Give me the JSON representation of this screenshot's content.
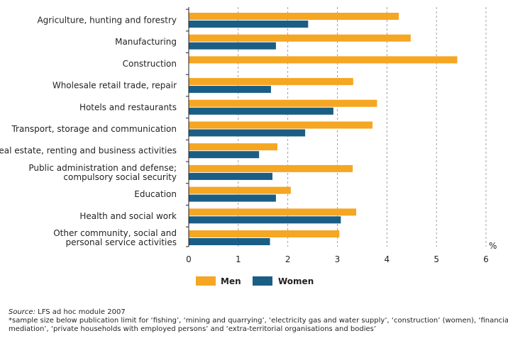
{
  "chart_data": {
    "type": "bar",
    "orientation": "horizontal",
    "categories": [
      [
        "Agriculture, hunting and forestry"
      ],
      [
        "Manufacturing"
      ],
      [
        "Construction"
      ],
      [
        "Wholesale retail trade, repair"
      ],
      [
        "Hotels and restaurants"
      ],
      [
        "Transport, storage and communication"
      ],
      [
        "Real estate, renting and business activities"
      ],
      [
        "Public administration and defense;",
        "compulsory social security"
      ],
      [
        "Education"
      ],
      [
        "Health and social work"
      ],
      [
        "Other community, social and",
        "personal service activities"
      ]
    ],
    "series": [
      {
        "name": "Men",
        "color": "#f5a623",
        "values": [
          4.24,
          4.48,
          5.42,
          3.32,
          3.8,
          3.71,
          1.79,
          3.31,
          2.06,
          3.38,
          3.04
        ]
      },
      {
        "name": "Women",
        "color": "#1a5e86",
        "values": [
          2.41,
          1.76,
          null,
          1.66,
          2.92,
          2.35,
          1.42,
          1.69,
          1.76,
          3.07,
          1.64
        ]
      }
    ],
    "xlim": [
      0,
      6
    ],
    "xticks": [
      "0",
      "1",
      "2",
      "3",
      "4",
      "5",
      "6"
    ],
    "unit_label": "%",
    "grid": "vertical dashed",
    "legend_position": "bottom-center"
  },
  "footnotes": {
    "source_label": "Source:",
    "source_text": " LFS ad hoc module 2007",
    "note_line1": "*sample size below publication limit for ‘fishing’, ‘mining and quarrying’, ‘electricity gas and water supply’, ‘construction’ (women), ‘financial",
    "note_line2": "mediation’, ‘private households with employed persons’ and ‘extra-territorial organisations and bodies’"
  }
}
